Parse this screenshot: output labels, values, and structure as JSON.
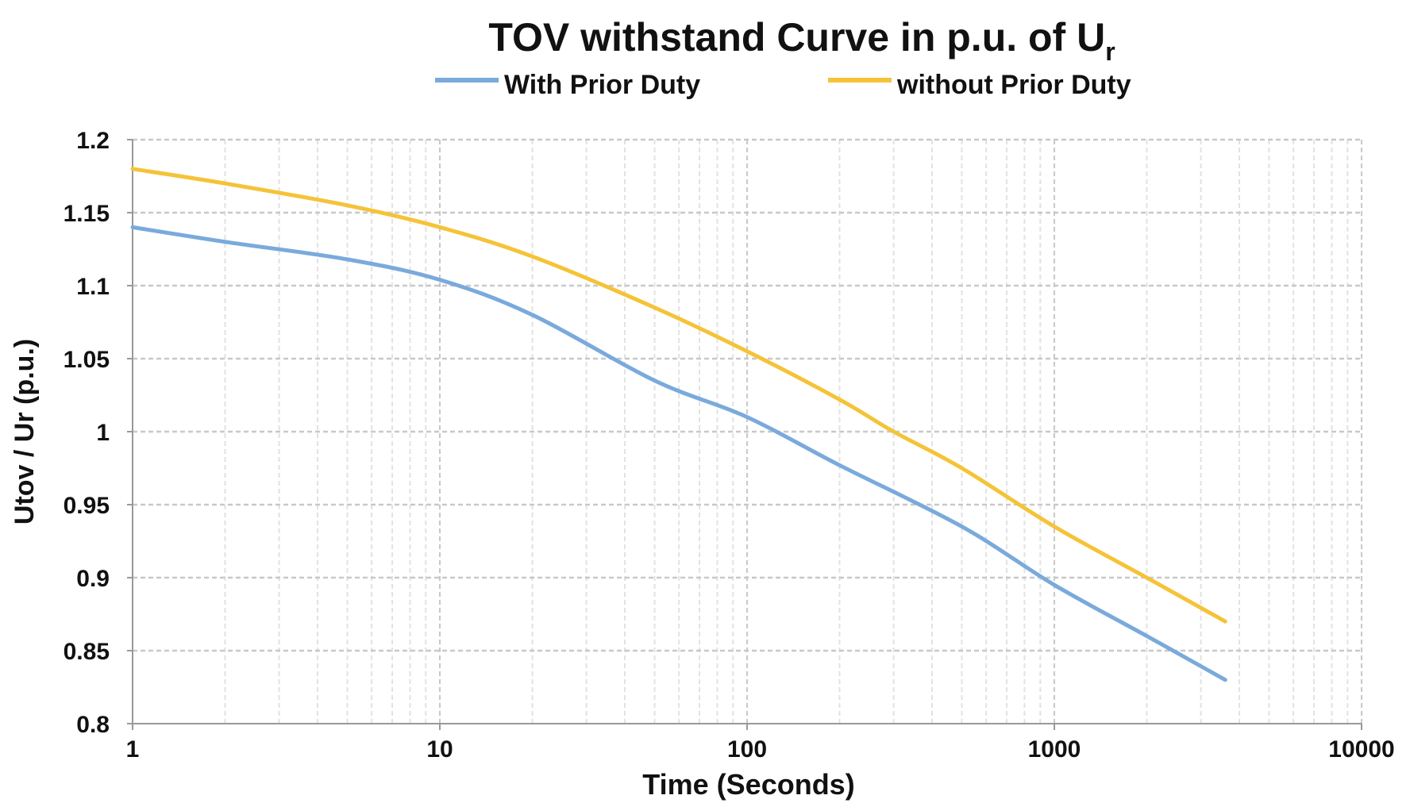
{
  "chart_data": {
    "type": "line",
    "title": "TOV withstand Curve in p.u. of U",
    "title_subscript": "r",
    "xlabel": "Time (Seconds)",
    "ylabel": "Utov / Ur (p.u.)",
    "xscale": "log",
    "xlim": [
      1,
      10000
    ],
    "ylim": [
      0.8,
      1.2
    ],
    "xticks": [
      "1",
      "10",
      "100",
      "1000",
      "10000"
    ],
    "xtick_values": [
      1,
      10,
      100,
      1000,
      10000
    ],
    "yticks": [
      "0.8",
      "0.85",
      "0.9",
      "0.95",
      "1",
      "1.05",
      "1.1",
      "1.15",
      "1.2"
    ],
    "ytick_values": [
      0.8,
      0.85,
      0.9,
      0.95,
      1.0,
      1.05,
      1.1,
      1.15,
      1.2
    ],
    "grid": true,
    "legend_position": "top-center",
    "series": [
      {
        "name": "With Prior Duty",
        "color": "#7aaadc",
        "x": [
          1,
          2,
          5,
          10,
          20,
          50,
          100,
          200,
          500,
          1000,
          2000,
          3600
        ],
        "y": [
          1.14,
          1.13,
          1.118,
          1.104,
          1.08,
          1.035,
          1.01,
          0.977,
          0.935,
          0.895,
          0.86,
          0.83
        ]
      },
      {
        "name": "without Prior Duty",
        "color": "#f5c338",
        "x": [
          1,
          2,
          5,
          10,
          20,
          50,
          100,
          200,
          300,
          500,
          1000,
          2000,
          3600
        ],
        "y": [
          1.18,
          1.17,
          1.155,
          1.14,
          1.12,
          1.085,
          1.055,
          1.022,
          1.0,
          0.975,
          0.935,
          0.9,
          0.87
        ]
      }
    ]
  }
}
